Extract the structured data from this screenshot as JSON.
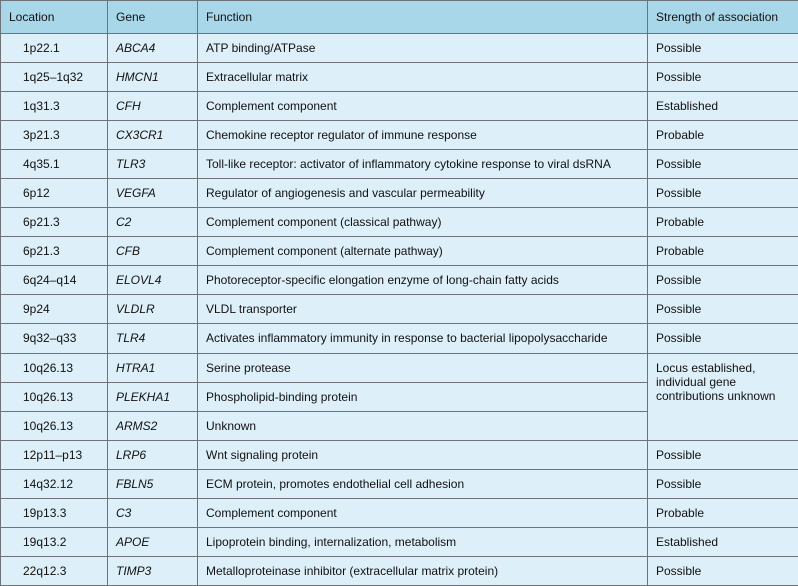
{
  "table": {
    "header": [
      "Location",
      "Gene",
      "Function",
      "Strength of association"
    ],
    "rows": [
      {
        "location": "1p22.1",
        "gene": "ABCA4",
        "function": "ATP binding/ATPase",
        "strength": "Possible"
      },
      {
        "location": "1q25–1q32",
        "gene": "HMCN1",
        "function": "Extracellular matrix",
        "strength": "Possible"
      },
      {
        "location": "1q31.3",
        "gene": "CFH",
        "function": "Complement component",
        "strength": "Established"
      },
      {
        "location": "3p21.3",
        "gene": "CX3CR1",
        "function": "Chemokine receptor regulator of immune response",
        "strength": "Probable"
      },
      {
        "location": "4q35.1",
        "gene": "TLR3",
        "function": "Toll-like receptor: activator of inflammatory cytokine response to viral dsRNA",
        "strength": "Possible"
      },
      {
        "location": "6p12",
        "gene": "VEGFA",
        "function": "Regulator of angiogenesis and vascular permeability",
        "strength": "Possible"
      },
      {
        "location": "6p21.3",
        "gene": "C2",
        "function": "Complement component (classical pathway)",
        "strength": "Probable"
      },
      {
        "location": "6p21.3",
        "gene": "CFB",
        "function": "Complement component (alternate pathway)",
        "strength": "Probable"
      },
      {
        "location": "6q24–q14",
        "gene": "ELOVL4",
        "function": "Photoreceptor-specific elongation enzyme of long-chain fatty acids",
        "strength": "Possible"
      },
      {
        "location": "9p24",
        "gene": "VLDLR",
        "function": "VLDL transporter",
        "strength": "Possible"
      },
      {
        "location": "9q32–q33",
        "gene": "TLR4",
        "function": "Activates inflammatory immunity in response to bacterial lipopolysaccharide",
        "strength": "Possible"
      },
      {
        "location": "10q26.13",
        "gene": "HTRA1",
        "function": "Serine protease",
        "strength": "Locus established, individual gene contributions unknown"
      },
      {
        "location": "10q26.13",
        "gene": "PLEKHA1",
        "function": "Phospholipid-binding protein"
      },
      {
        "location": "10q26.13",
        "gene": "ARMS2",
        "function": "Unknown"
      },
      {
        "location": "12p11–p13",
        "gene": "LRP6",
        "function": "Wnt signaling protein",
        "strength": "Possible"
      },
      {
        "location": "14q32.12",
        "gene": "FBLN5",
        "function": "ECM protein, promotes endothelial cell adhesion",
        "strength": "Possible"
      },
      {
        "location": "19p13.3",
        "gene": "C3",
        "function": "Complement component",
        "strength": "Probable"
      },
      {
        "location": "19q13.2",
        "gene": "APOE",
        "function": "Lipoprotein binding, internalization, metabolism",
        "strength": "Established"
      },
      {
        "location": "22q12.3",
        "gene": "TIMP3",
        "function": "Metalloproteinase inhibitor (extracellular matrix protein)",
        "strength": "Possible"
      }
    ]
  }
}
